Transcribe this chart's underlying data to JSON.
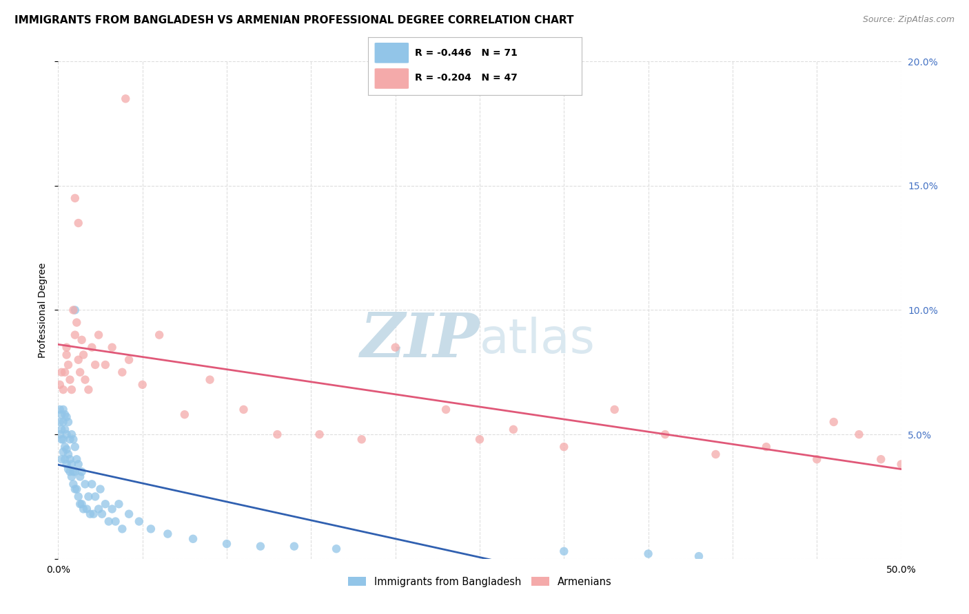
{
  "title": "IMMIGRANTS FROM BANGLADESH VS ARMENIAN PROFESSIONAL DEGREE CORRELATION CHART",
  "source": "Source: ZipAtlas.com",
  "ylabel": "Professional Degree",
  "legend_label1": "Immigrants from Bangladesh",
  "legend_label2": "Armenians",
  "R1": -0.446,
  "N1": 71,
  "R2": -0.204,
  "N2": 47,
  "color1": "#92C5E8",
  "color2": "#F4AAAA",
  "line_color1": "#3060B0",
  "line_color2": "#E05878",
  "xlim": [
    0.0,
    0.5
  ],
  "ylim": [
    0.0,
    0.2
  ],
  "xticks": [
    0.0,
    0.05,
    0.1,
    0.15,
    0.2,
    0.25,
    0.3,
    0.35,
    0.4,
    0.45,
    0.5
  ],
  "yticks": [
    0.0,
    0.05,
    0.1,
    0.15,
    0.2
  ],
  "bg_color": "#FFFFFF",
  "grid_color": "#DDDDDD",
  "right_tick_color": "#4472C4",
  "watermark_color": "#DAE8F0",
  "watermark_fontsize": 54,
  "title_fontsize": 11,
  "tick_fontsize": 10,
  "blue_x": [
    0.001,
    0.001,
    0.001,
    0.002,
    0.002,
    0.002,
    0.002,
    0.003,
    0.003,
    0.003,
    0.003,
    0.004,
    0.004,
    0.004,
    0.004,
    0.005,
    0.005,
    0.005,
    0.005,
    0.006,
    0.006,
    0.006,
    0.007,
    0.007,
    0.007,
    0.008,
    0.008,
    0.008,
    0.009,
    0.009,
    0.009,
    0.01,
    0.01,
    0.01,
    0.011,
    0.011,
    0.012,
    0.012,
    0.013,
    0.013,
    0.014,
    0.014,
    0.015,
    0.016,
    0.017,
    0.018,
    0.019,
    0.02,
    0.021,
    0.022,
    0.024,
    0.025,
    0.026,
    0.028,
    0.03,
    0.032,
    0.034,
    0.036,
    0.038,
    0.042,
    0.048,
    0.055,
    0.065,
    0.08,
    0.1,
    0.12,
    0.14,
    0.165,
    0.3,
    0.35,
    0.38
  ],
  "blue_y": [
    0.05,
    0.055,
    0.06,
    0.04,
    0.048,
    0.052,
    0.058,
    0.043,
    0.048,
    0.055,
    0.06,
    0.04,
    0.045,
    0.052,
    0.058,
    0.038,
    0.044,
    0.05,
    0.057,
    0.036,
    0.042,
    0.055,
    0.035,
    0.04,
    0.048,
    0.033,
    0.038,
    0.05,
    0.03,
    0.035,
    0.048,
    0.028,
    0.035,
    0.045,
    0.028,
    0.04,
    0.025,
    0.038,
    0.022,
    0.033,
    0.022,
    0.035,
    0.02,
    0.03,
    0.02,
    0.025,
    0.018,
    0.03,
    0.018,
    0.025,
    0.02,
    0.028,
    0.018,
    0.022,
    0.015,
    0.02,
    0.015,
    0.022,
    0.012,
    0.018,
    0.015,
    0.012,
    0.01,
    0.008,
    0.006,
    0.005,
    0.005,
    0.004,
    0.003,
    0.002,
    0.001
  ],
  "pink_x": [
    0.001,
    0.002,
    0.003,
    0.004,
    0.005,
    0.005,
    0.006,
    0.007,
    0.008,
    0.009,
    0.01,
    0.011,
    0.012,
    0.013,
    0.014,
    0.015,
    0.016,
    0.018,
    0.02,
    0.022,
    0.024,
    0.028,
    0.032,
    0.038,
    0.042,
    0.05,
    0.06,
    0.075,
    0.09,
    0.11,
    0.13,
    0.155,
    0.18,
    0.2,
    0.23,
    0.25,
    0.27,
    0.3,
    0.33,
    0.36,
    0.39,
    0.42,
    0.45,
    0.46,
    0.475,
    0.488,
    0.5
  ],
  "pink_y": [
    0.07,
    0.075,
    0.068,
    0.075,
    0.082,
    0.085,
    0.078,
    0.072,
    0.068,
    0.1,
    0.09,
    0.095,
    0.08,
    0.075,
    0.088,
    0.082,
    0.072,
    0.068,
    0.085,
    0.078,
    0.09,
    0.078,
    0.085,
    0.075,
    0.08,
    0.07,
    0.09,
    0.058,
    0.072,
    0.06,
    0.05,
    0.05,
    0.048,
    0.085,
    0.06,
    0.048,
    0.052,
    0.045,
    0.06,
    0.05,
    0.042,
    0.045,
    0.04,
    0.055,
    0.05,
    0.04,
    0.038
  ],
  "pink_outlier_x": [
    0.04
  ],
  "pink_outlier_y": [
    0.185
  ],
  "pink_outlier2_x": [
    0.01
  ],
  "pink_outlier2_y": [
    0.145
  ],
  "pink_outlier3_x": [
    0.012
  ],
  "pink_outlier3_y": [
    0.135
  ],
  "blue_outlier_x": [
    0.01
  ],
  "blue_outlier_y": [
    0.1
  ]
}
